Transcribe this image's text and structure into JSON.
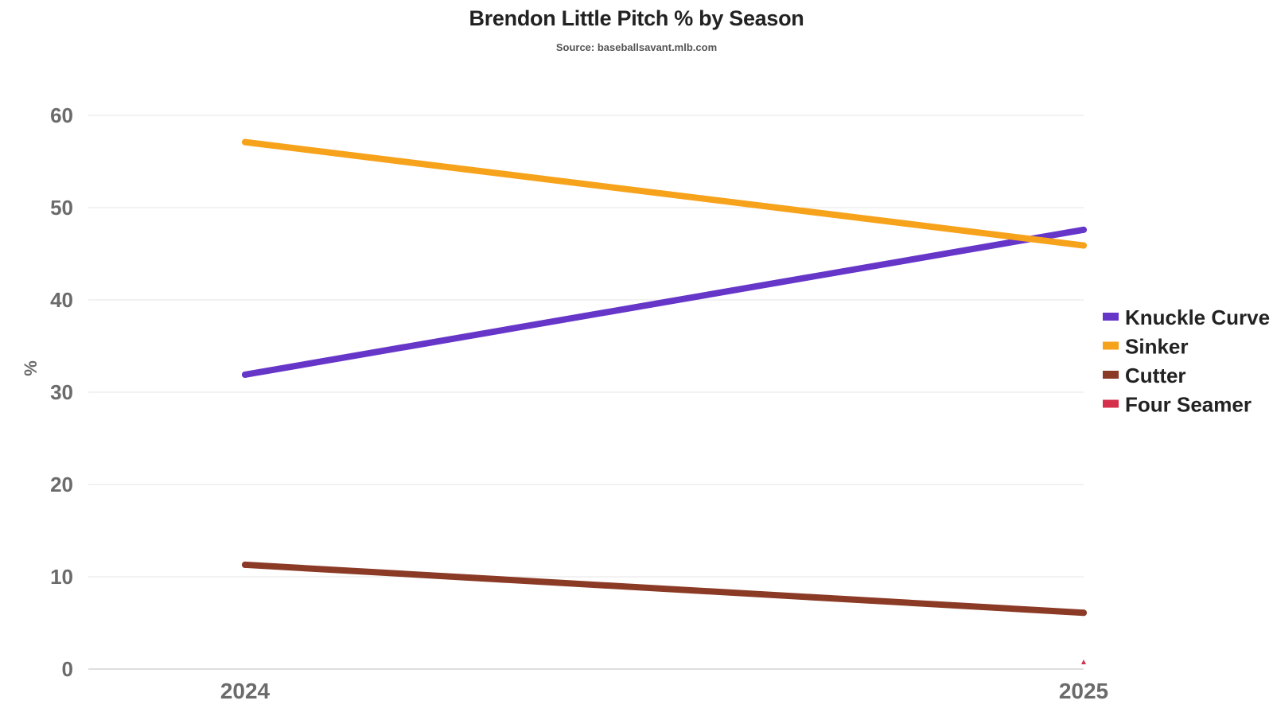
{
  "chart_data": {
    "type": "line",
    "title": "Brendon Little Pitch % by Season",
    "subtitle": "Source: baseballsavant.mlb.com",
    "xlabel": "",
    "ylabel": "%",
    "categories": [
      "2024",
      "2025"
    ],
    "ylim": [
      0,
      60
    ],
    "yticks": [
      "0",
      "10",
      "20",
      "30",
      "40",
      "50",
      "60"
    ],
    "grid": true,
    "legend_position": "right",
    "series": [
      {
        "name": "Knuckle Curve",
        "color": "#6636c9",
        "values": [
          31.9,
          47.6
        ]
      },
      {
        "name": "Sinker",
        "color": "#f7a21b",
        "values": [
          57.1,
          45.9
        ]
      },
      {
        "name": "Cutter",
        "color": "#8b3a26",
        "values": [
          11.3,
          6.1
        ]
      },
      {
        "name": "Four Seamer",
        "color": "#d62f4b",
        "values": [
          null,
          0.6
        ]
      }
    ]
  }
}
